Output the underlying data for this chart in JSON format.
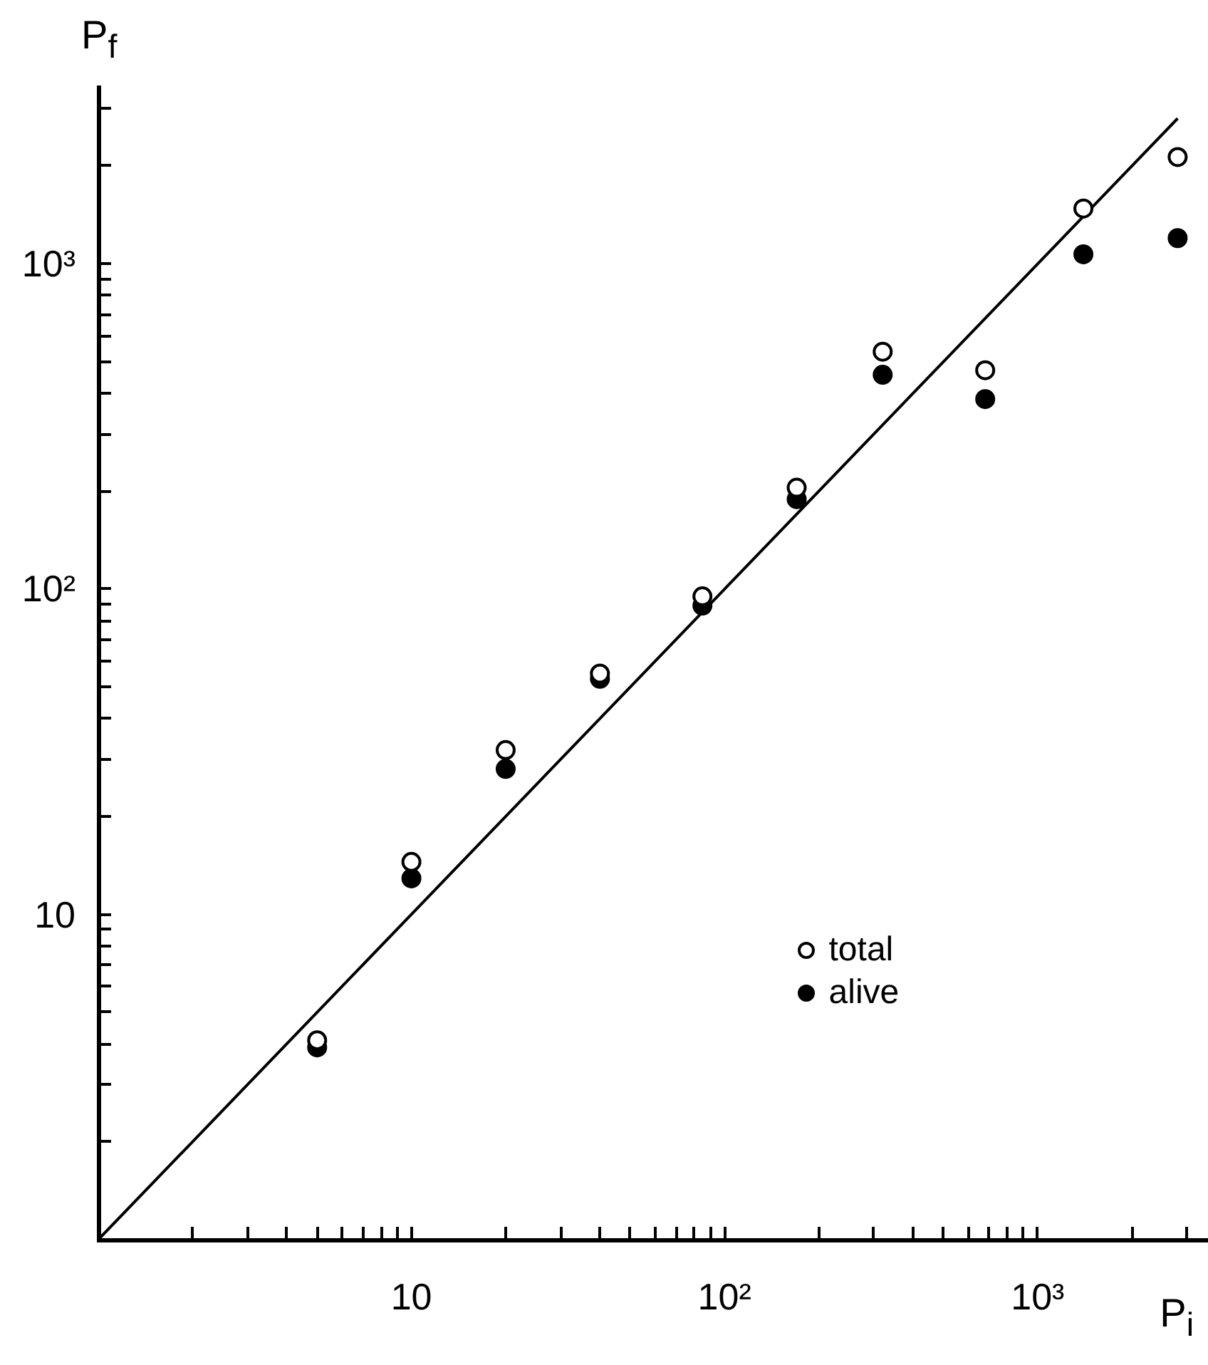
{
  "chart_data": {
    "type": "scatter",
    "xlabel": "P$_{i}$",
    "ylabel": "P$_{f}$",
    "log": "xy",
    "grid": false,
    "legend": "bottom right",
    "marker": "circle",
    "xlim": [
      1,
      3500
    ],
    "ylim": [
      1,
      3500
    ],
    "xticks": [
      {
        "value": 2,
        "label": null
      },
      {
        "value": 3,
        "label": null
      },
      {
        "value": 4,
        "label": null
      },
      {
        "value": 5,
        "label": null
      },
      {
        "value": 6,
        "label": null
      },
      {
        "value": 7,
        "label": null
      },
      {
        "value": 8,
        "label": null
      },
      {
        "value": 9,
        "label": null
      },
      {
        "value": 10,
        "label": "10"
      },
      {
        "value": 20,
        "label": null
      },
      {
        "value": 30,
        "label": null
      },
      {
        "value": 40,
        "label": null
      },
      {
        "value": 50,
        "label": null
      },
      {
        "value": 60,
        "label": null
      },
      {
        "value": 70,
        "label": null
      },
      {
        "value": 80,
        "label": null
      },
      {
        "value": 90,
        "label": null
      },
      {
        "value": 100,
        "label": "10²"
      },
      {
        "value": 200,
        "label": null
      },
      {
        "value": 300,
        "label": null
      },
      {
        "value": 400,
        "label": null
      },
      {
        "value": 500,
        "label": null
      },
      {
        "value": 600,
        "label": null
      },
      {
        "value": 700,
        "label": null
      },
      {
        "value": 800,
        "label": null
      },
      {
        "value": 900,
        "label": null
      },
      {
        "value": 1000,
        "label": "10³"
      },
      {
        "value": 2000,
        "label": null
      },
      {
        "value": 3000,
        "label": null
      }
    ],
    "yticks": [
      {
        "value": 2,
        "label": null
      },
      {
        "value": 3,
        "label": null
      },
      {
        "value": 4,
        "label": null
      },
      {
        "value": 5,
        "label": null
      },
      {
        "value": 6,
        "label": null
      },
      {
        "value": 7,
        "label": null
      },
      {
        "value": 8,
        "label": null
      },
      {
        "value": 9,
        "label": null
      },
      {
        "value": 10,
        "label": "10"
      },
      {
        "value": 20,
        "label": null
      },
      {
        "value": 30,
        "label": null
      },
      {
        "value": 40,
        "label": null
      },
      {
        "value": 50,
        "label": null
      },
      {
        "value": 60,
        "label": null
      },
      {
        "value": 70,
        "label": null
      },
      {
        "value": 80,
        "label": null
      },
      {
        "value": 90,
        "label": null
      },
      {
        "value": 100,
        "label": "10²"
      },
      {
        "value": 200,
        "label": null
      },
      {
        "value": 300,
        "label": null
      },
      {
        "value": 400,
        "label": null
      },
      {
        "value": 500,
        "label": null
      },
      {
        "value": 600,
        "label": null
      },
      {
        "value": 700,
        "label": null
      },
      {
        "value": 800,
        "label": null
      },
      {
        "value": 900,
        "label": null
      },
      {
        "value": 1000,
        "label": "10³"
      },
      {
        "value": 2000,
        "label": null
      },
      {
        "value": 3000,
        "label": null
      }
    ],
    "x": [
      5,
      10,
      20,
      40,
      85,
      170,
      320,
      680,
      1400,
      2800
    ],
    "series": [
      {
        "name": "total",
        "color": "#000000",
        "values": [
          4.1,
          14.5,
          32,
          55,
          95,
          205,
          537,
          471,
          1480,
          2130
        ]
      },
      {
        "name": "alive",
        "color": "#000000",
        "values": [
          3.9,
          12.9,
          28,
          53,
          89,
          189,
          456,
          384,
          1070,
          1200
        ]
      },
      {
        "type": "line",
        "color": "#000000",
        "x": [
          1,
          2800
        ],
        "values": [
          1,
          2800
        ],
        "marker": "none"
      }
    ]
  }
}
